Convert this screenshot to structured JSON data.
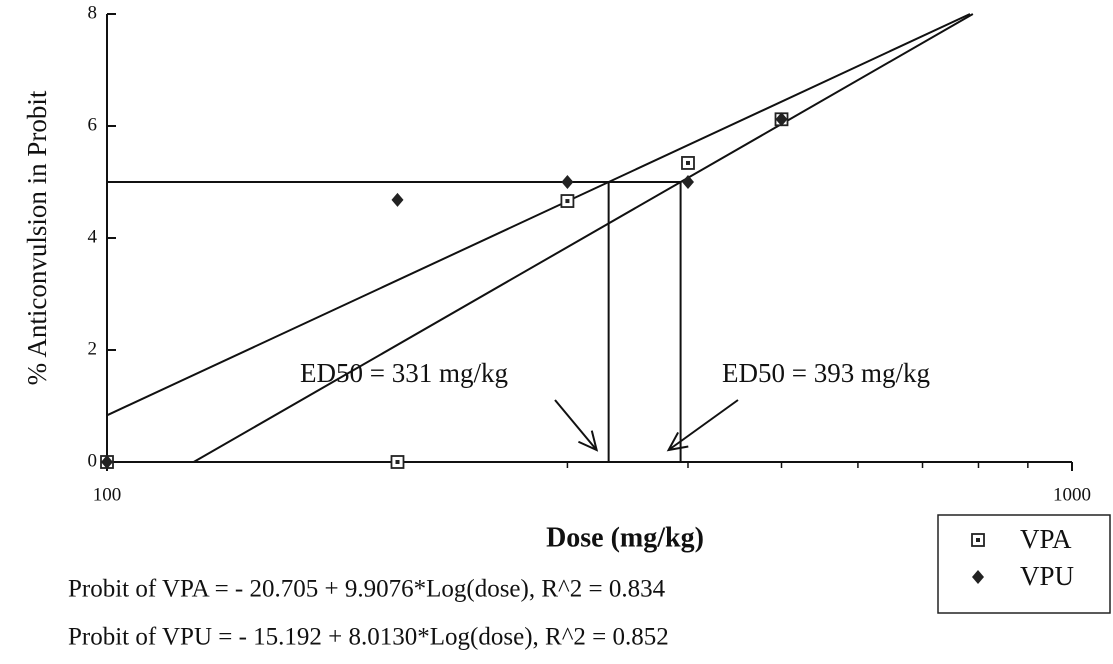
{
  "chart_data": {
    "type": "scatter",
    "x_label": "Dose (mg/kg)",
    "y_label": "% Anticonvulsion in Probit",
    "x_log": true,
    "xlim": [
      100,
      1000
    ],
    "xticks": [
      100,
      1000
    ],
    "ylim": [
      0,
      8
    ],
    "yticks": [
      0,
      2,
      4,
      6,
      8
    ],
    "legend": "lower right",
    "series": [
      {
        "name": "VPA",
        "marker": "open-square",
        "color": "#222",
        "x": [
          100,
          200,
          300,
          400,
          500
        ],
        "values": [
          0,
          0,
          4.66,
          5.34,
          6.12
        ],
        "fit": {
          "intercept": -20.705,
          "slope": 9.9076
        },
        "equation": "Probit of VPA =  - 20.705 + 9.9076*Log(dose),  R^2 = 0.834"
      },
      {
        "name": "VPU",
        "marker": "diamond",
        "color": "#222",
        "x": [
          100,
          200,
          300,
          400,
          500
        ],
        "values": [
          0,
          4.68,
          5.0,
          5.0,
          6.12
        ],
        "fit": {
          "intercept": -15.192,
          "slope": 8.013
        },
        "equation": "Probit of VPU =  - 15.192 + 8.0130*Log(dose),  R^2 = 0.852"
      }
    ],
    "ed50": [
      {
        "x": 331,
        "y": 5,
        "label": "ED50 = 331 mg/kg"
      },
      {
        "x": 393,
        "y": 5,
        "label": "ED50 = 393 mg/kg"
      }
    ]
  }
}
